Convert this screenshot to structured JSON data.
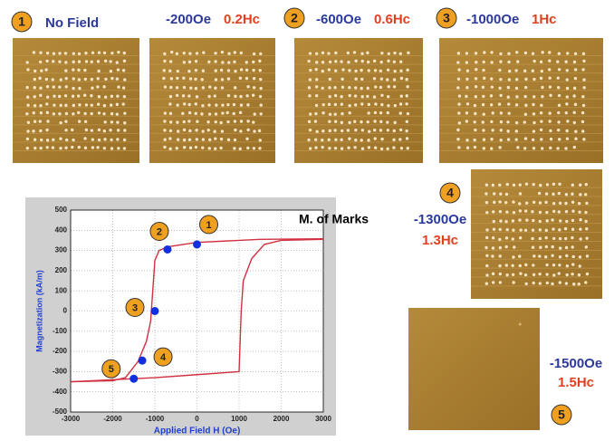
{
  "panels": [
    {
      "number": "1",
      "field": "No Field"
    },
    {
      "field": "-200Oe",
      "hc": "0.2Hc"
    },
    {
      "number": "2",
      "field": "-600Oe",
      "hc": "0.6Hc"
    },
    {
      "number": "3",
      "field": "-1000Oe",
      "hc": "1Hc"
    },
    {
      "number": "4",
      "field": "-1300Oe",
      "hc": "1.3Hc"
    },
    {
      "number": "5",
      "field": "-1500Oe",
      "hc": "1.5Hc"
    }
  ],
  "chart_data": {
    "type": "line",
    "annotation": "M. of Marks",
    "x_label": "Applied Field H (Oe)",
    "y_label": "Magnetization (kA/m)",
    "xlim": [
      -3000,
      3000
    ],
    "ylim": [
      -500,
      500
    ],
    "xticks": [
      -3000,
      -2000,
      -1000,
      0,
      1000,
      2000,
      3000
    ],
    "yticks": [
      -500,
      -400,
      -300,
      -200,
      -100,
      0,
      100,
      200,
      300,
      400,
      500
    ],
    "grid": true,
    "series": [
      {
        "color": "#d03040",
        "x": [
          3000,
          1500,
          0,
          -700,
          -900,
          -1000,
          -1050,
          -1100,
          -1200,
          -1400,
          -1700,
          -2000,
          -3000
        ],
        "values": [
          358,
          355,
          340,
          318,
          300,
          250,
          100,
          -50,
          -150,
          -250,
          -330,
          -345,
          -350
        ]
      },
      {
        "color": "#d03040",
        "x": [
          -3000,
          -1000,
          0,
          1000,
          1050,
          1100,
          1300,
          1600,
          2000,
          3000
        ],
        "values": [
          -350,
          -330,
          -315,
          -300,
          0,
          150,
          260,
          330,
          350,
          355
        ]
      }
    ],
    "markers": [
      {
        "label": "1",
        "x": 0,
        "y": 330
      },
      {
        "label": "2",
        "x": -700,
        "y": 305
      },
      {
        "label": "3",
        "x": -1000,
        "y": 0
      },
      {
        "label": "4",
        "x": -1300,
        "y": -245
      },
      {
        "label": "5",
        "x": -1500,
        "y": -335
      }
    ],
    "marker_color": "#1030e0"
  }
}
